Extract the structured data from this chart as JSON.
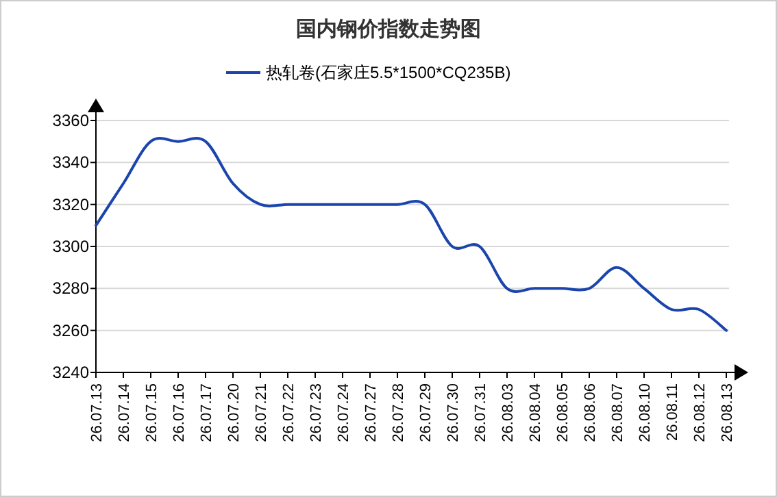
{
  "chart_data": {
    "type": "line",
    "title": "国内钢价指数走势图",
    "categories": [
      "26.07.13",
      "26.07.14",
      "26.07.15",
      "26.07.16",
      "26.07.17",
      "26.07.20",
      "26.07.21",
      "26.07.22",
      "26.07.23",
      "26.07.24",
      "26.07.27",
      "26.07.28",
      "26.07.29",
      "26.07.30",
      "26.07.31",
      "26.08.03",
      "26.08.04",
      "26.08.05",
      "26.08.06",
      "26.08.07",
      "26.08.10",
      "26.08.11",
      "26.08.12",
      "26.08.13"
    ],
    "series": [
      {
        "name": "热轧卷(石家庄5.5*1500*CQ235B)",
        "color": "#1b45ad",
        "values": [
          3310,
          3330,
          3350,
          3350,
          3350,
          3330,
          3320,
          3320,
          3320,
          3320,
          3320,
          3320,
          3320,
          3300,
          3300,
          3280,
          3280,
          3280,
          3280,
          3290,
          3280,
          3270,
          3270,
          3260
        ]
      }
    ],
    "ylim": [
      3240,
      3360
    ],
    "yticks": [
      3240,
      3260,
      3280,
      3300,
      3320,
      3340,
      3360
    ],
    "grid": "y",
    "legend": "top",
    "marker": "none",
    "line_style": "solid"
  }
}
